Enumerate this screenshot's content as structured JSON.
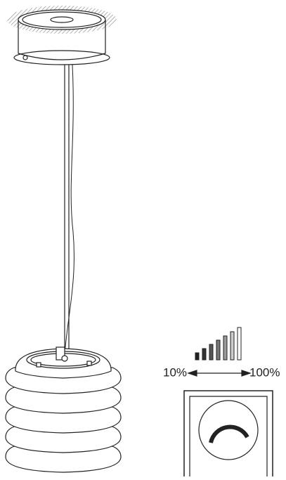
{
  "dimmer": {
    "min_label": "10%",
    "max_label": "100%"
  }
}
